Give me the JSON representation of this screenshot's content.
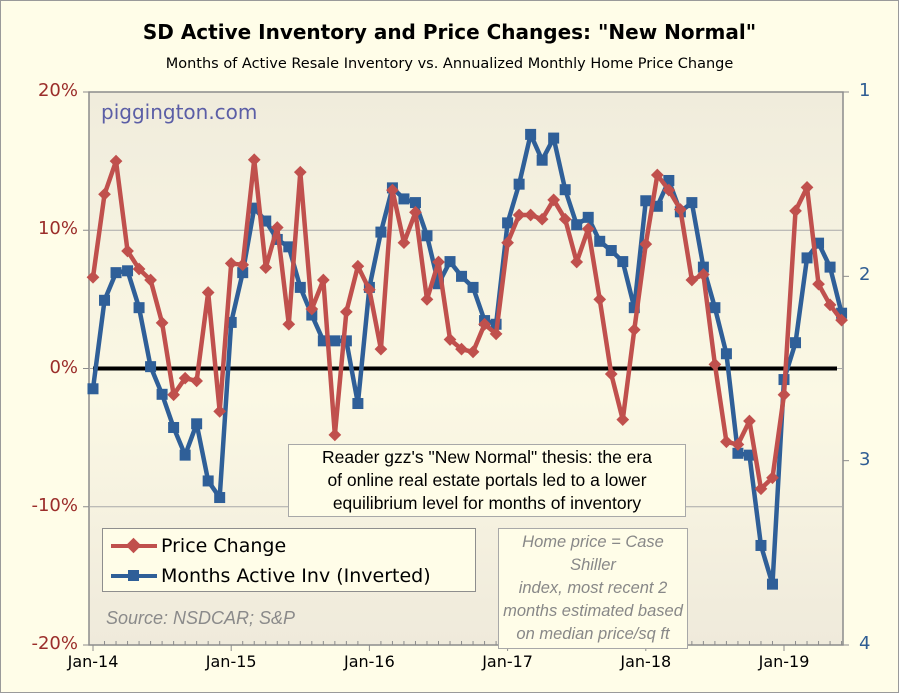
{
  "chart_data": {
    "type": "line",
    "title": "SD Active Inventory and Price Changes: \"New Normal\"",
    "subtitle": "Months of Active Resale Inventory vs. Annualized Monthly Home Price Change",
    "watermark": "piggington.com",
    "x_start": "Jan-14",
    "x_frequency": "monthly",
    "x_tick_labels": [
      "Jan-14",
      "Jan-15",
      "Jan-16",
      "Jan-17",
      "Jan-18",
      "Jan-19"
    ],
    "y_left": {
      "label": "Price Change",
      "ticks": [
        "20%",
        "10%",
        "0%",
        "-10%",
        "-20%"
      ],
      "range": [
        -20,
        20
      ],
      "unit": "%"
    },
    "y_right": {
      "label": "Months Active Inv (Inverted)",
      "ticks": [
        "1",
        "2",
        "3",
        "4"
      ],
      "range": [
        1,
        4
      ],
      "inverted": true
    },
    "zero_line": true,
    "grid": "horizontal",
    "legend_position": "bottom-left",
    "series": [
      {
        "name": "Price Change",
        "axis": "left",
        "color": "#c0504d",
        "marker": "diamond",
        "values": [
          6.6,
          12.6,
          15.0,
          8.5,
          7.2,
          6.4,
          3.3,
          -1.9,
          -0.7,
          -0.9,
          5.5,
          -3.1,
          7.6,
          7.5,
          15.1,
          7.3,
          10.2,
          3.2,
          14.2,
          4.3,
          6.4,
          -4.8,
          4.1,
          7.4,
          5.7,
          1.4,
          12.9,
          9.1,
          11.3,
          5.0,
          7.7,
          2.1,
          1.4,
          1.2,
          3.2,
          2.5,
          9.1,
          11.1,
          11.1,
          10.8,
          12.2,
          10.8,
          7.7,
          10.1,
          5.0,
          -0.4,
          -3.7,
          2.8,
          9.0,
          14.0,
          12.9,
          11.5,
          6.4,
          6.8,
          0.3,
          -5.3,
          -5.5,
          -3.8,
          -8.7,
          -7.9,
          -1.9,
          11.4,
          13.1,
          6.1,
          4.6,
          3.5
        ]
      },
      {
        "name": "Months Active Inv (Inverted)",
        "axis": "right",
        "color": "#2f5f98",
        "marker": "square",
        "values": [
          2.61,
          2.13,
          1.98,
          1.97,
          2.17,
          2.49,
          2.64,
          2.82,
          2.97,
          2.8,
          3.11,
          3.2,
          2.25,
          1.98,
          1.63,
          1.7,
          1.8,
          1.84,
          2.06,
          2.21,
          2.35,
          2.35,
          2.35,
          2.69,
          2.06,
          1.76,
          1.52,
          1.58,
          1.6,
          1.78,
          2.04,
          1.92,
          2.0,
          2.06,
          2.24,
          2.26,
          1.71,
          1.5,
          1.23,
          1.37,
          1.25,
          1.53,
          1.72,
          1.68,
          1.81,
          1.86,
          1.92,
          2.17,
          1.59,
          1.62,
          1.48,
          1.65,
          1.6,
          1.95,
          2.17,
          2.42,
          2.96,
          2.97,
          3.46,
          3.67,
          2.56,
          2.36,
          1.9,
          1.82,
          1.95,
          2.2
        ]
      }
    ],
    "annotations": [
      "Reader gzz's \"New Normal\" thesis: the era of online real estate portals led to a lower equilibrium level for months of inventory",
      "Home price = Case Shiller index, most recent 2 months estimated based on median price/sq ft"
    ],
    "source": "Source: NSDCAR; S&P"
  },
  "text": {
    "annot_lines": [
      "Reader gzz's \"New Normal\" thesis: the era",
      "of online real estate portals led to a lower",
      "equilibrium level for months of inventory"
    ],
    "note_lines": [
      "Home price = Case Shiller",
      "index, most recent 2",
      "months estimated based",
      "on median price/sq ft"
    ]
  }
}
